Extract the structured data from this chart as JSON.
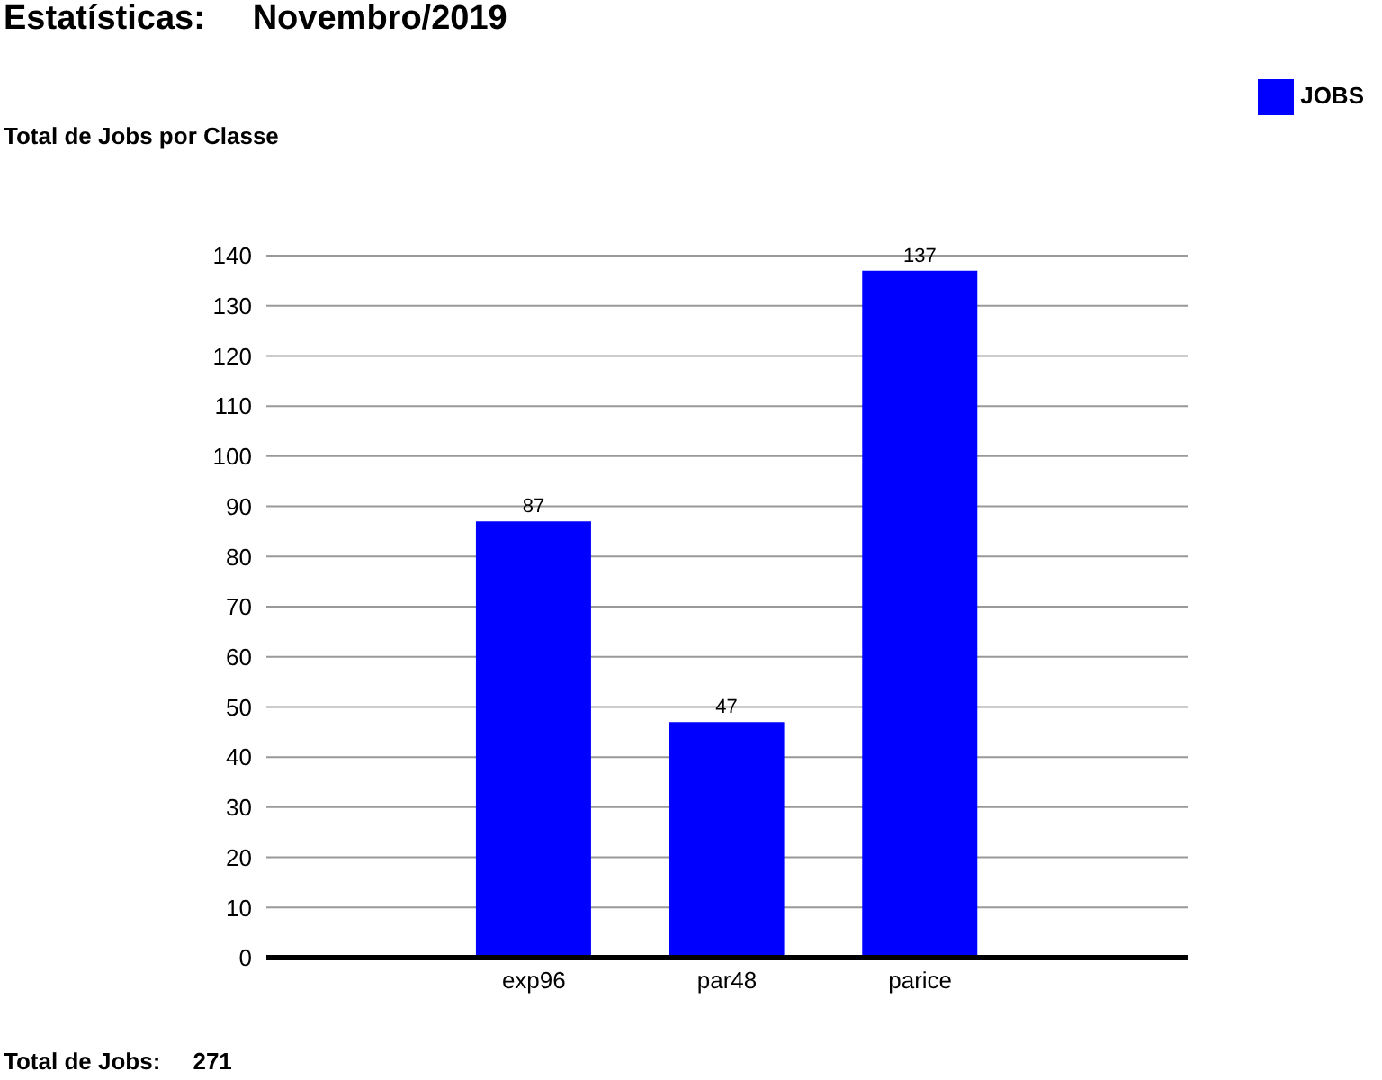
{
  "chart_data": {
    "type": "bar",
    "title": "Estatísticas:     Novembro/2019",
    "ylabel": "Total de Jobs por Classe",
    "categories": [
      "exp96",
      "par48",
      "parice"
    ],
    "series": [
      {
        "name": "JOBS",
        "color": "#0000ff",
        "values": [
          87,
          47,
          137
        ]
      }
    ],
    "ylim": [
      0,
      140
    ],
    "yticks": [
      0,
      10,
      20,
      30,
      40,
      50,
      60,
      70,
      80,
      90,
      100,
      110,
      120,
      130,
      140
    ],
    "grid": "y",
    "legend": "top right",
    "data_labels": true,
    "annotations": [
      "Total de Jobs:     271"
    ]
  }
}
